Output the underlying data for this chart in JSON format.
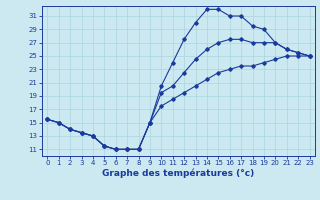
{
  "title": "Graphe des températures (°c)",
  "background_color": "#cce8f0",
  "line_color": "#1a3a9e",
  "xlim": [
    -0.5,
    23.5
  ],
  "ylim": [
    10.0,
    32.5
  ],
  "xticks": [
    0,
    1,
    2,
    3,
    4,
    5,
    6,
    7,
    8,
    9,
    10,
    11,
    12,
    13,
    14,
    15,
    16,
    17,
    18,
    19,
    20,
    21,
    22,
    23
  ],
  "yticks": [
    11,
    13,
    15,
    17,
    19,
    21,
    23,
    25,
    27,
    29,
    31
  ],
  "line1_x": [
    0,
    1,
    2,
    3,
    4,
    5,
    6,
    7,
    8,
    9,
    10,
    11,
    12,
    13,
    14,
    15,
    16,
    17,
    18,
    19,
    20,
    21,
    22,
    23
  ],
  "line1_y": [
    15.5,
    15.0,
    14.0,
    13.5,
    13.0,
    11.5,
    11.0,
    11.0,
    11.0,
    15.0,
    20.5,
    24.0,
    27.5,
    30.0,
    32.0,
    32.0,
    31.0,
    31.0,
    29.5,
    29.0,
    27.0,
    26.0,
    25.5,
    25.0
  ],
  "line2_x": [
    0,
    1,
    2,
    3,
    4,
    5,
    6,
    7,
    8,
    9,
    10,
    11,
    12,
    13,
    14,
    15,
    16,
    17,
    18,
    19,
    20,
    21,
    22,
    23
  ],
  "line2_y": [
    15.5,
    15.0,
    14.0,
    13.5,
    13.0,
    11.5,
    11.0,
    11.0,
    11.0,
    15.0,
    19.5,
    20.5,
    22.5,
    24.5,
    26.0,
    27.0,
    27.5,
    27.5,
    27.0,
    27.0,
    27.0,
    26.0,
    25.5,
    25.0
  ],
  "line3_x": [
    0,
    1,
    2,
    3,
    4,
    5,
    6,
    7,
    8,
    9,
    10,
    11,
    12,
    13,
    14,
    15,
    16,
    17,
    18,
    19,
    20,
    21,
    22,
    23
  ],
  "line3_y": [
    15.5,
    15.0,
    14.0,
    13.5,
    13.0,
    11.5,
    11.0,
    11.0,
    11.0,
    15.0,
    17.5,
    18.5,
    19.5,
    20.5,
    21.5,
    22.5,
    23.0,
    23.5,
    23.5,
    24.0,
    24.5,
    25.0,
    25.0,
    25.0
  ],
  "grid_color": "#aad4e0",
  "marker": "D",
  "markersize": 1.8,
  "linewidth": 0.8,
  "tick_fontsize": 5.0,
  "xlabel_fontsize": 6.5
}
